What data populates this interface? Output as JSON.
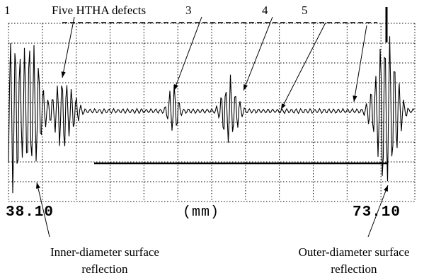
{
  "chart_data": {
    "type": "line",
    "xlabel": "(mm)",
    "x_tick_labels": [
      "38.10",
      "73.10"
    ],
    "xlim": [
      38.1,
      73.1
    ],
    "grid": true,
    "defect_markers": [
      "1",
      "3",
      "4",
      "5"
    ],
    "annotations": {
      "defects_label": "Five HTHA defects",
      "inner_reflection": [
        "Inner-diameter surface",
        "reflection"
      ],
      "outer_reflection": [
        "Outer-diameter surface",
        "reflection"
      ]
    },
    "series_color": "#000000"
  }
}
